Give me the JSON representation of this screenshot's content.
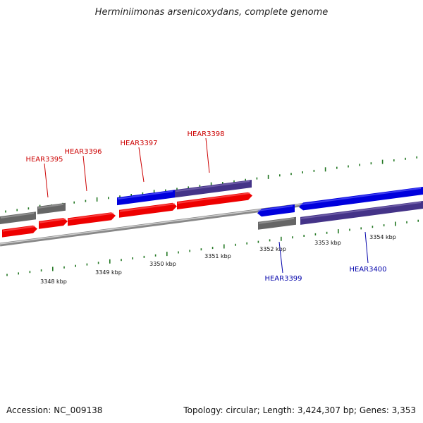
{
  "title": "Herminiimonas arsenicoxydans, complete genome",
  "accession_label": "Accession: NC_009138",
  "topology_label": "Topology: circular; Length: 3,424,307 bp; Genes: 3,353",
  "colors": {
    "forward_cds": "#ee0000",
    "forward_cds_light": "#ff6666",
    "reverse_cds": "#0000dd",
    "reverse_cds_light": "#6666ff",
    "forward_gray": "#666666",
    "reverse_purple": "#443388",
    "backbone": "#999999",
    "ticks": "#227722",
    "label_forward": "#cc0000",
    "label_reverse": "#0000aa"
  },
  "scale": {
    "ticks": [
      "3348 kbp",
      "3349 kbp",
      "3350 kbp",
      "3351 kbp",
      "3352 kbp",
      "3353 kbp",
      "3354 kbp"
    ]
  },
  "genes": [
    {
      "label": "HEAR3395",
      "strand": "forward"
    },
    {
      "label": "HEAR3396",
      "strand": "forward"
    },
    {
      "label": "HEAR3397",
      "strand": "forward"
    },
    {
      "label": "HEAR3398",
      "strand": "forward"
    },
    {
      "label": "HEAR3399",
      "strand": "reverse"
    },
    {
      "label": "HEAR3400",
      "strand": "reverse"
    }
  ]
}
